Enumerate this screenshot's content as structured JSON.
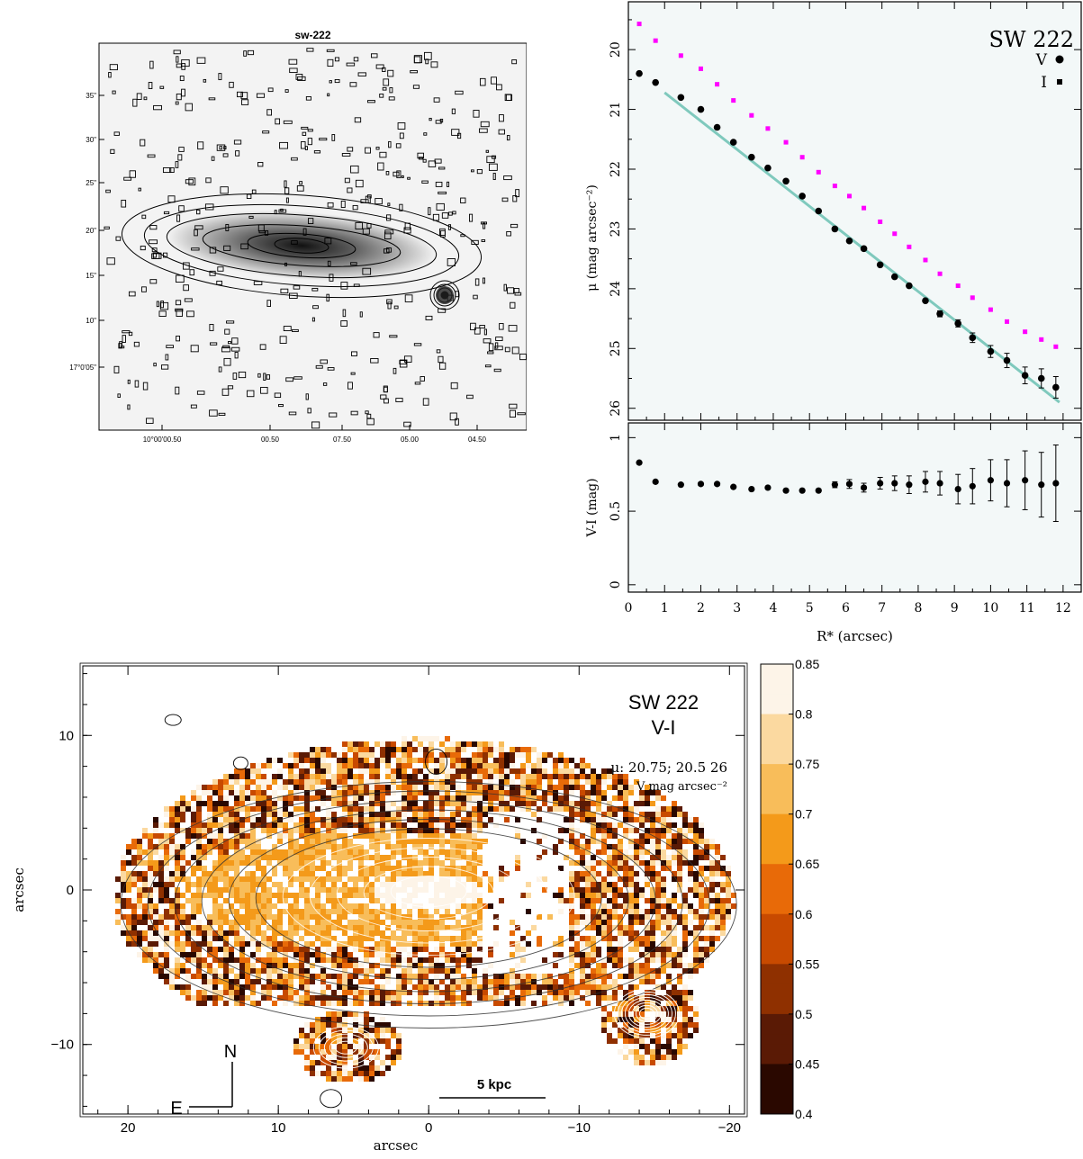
{
  "panel_a": {
    "title": "sw-222",
    "y_ticks": [
      "35\"",
      "30\"",
      "25\"",
      "20\"",
      "15\"",
      "10\"",
      "17°0'05\""
    ],
    "x_ticks": [
      "10°00'00.50",
      "00.50",
      "07.50",
      "05.00",
      "04.50"
    ]
  },
  "chart_data": [
    {
      "type": "scatter",
      "title": "SW 222",
      "xlabel": "R* (arcsec)",
      "ylabel": "μ (mag arcsec⁻²)",
      "xlim": [
        0,
        12.5
      ],
      "ylim": [
        26.2,
        19.2
      ],
      "y_inverted": true,
      "x_ticks": [
        "0",
        "1",
        "2",
        "3",
        "4",
        "5",
        "6",
        "7",
        "8",
        "9",
        "10",
        "11",
        "12"
      ],
      "y_ticks": [
        "20",
        "21",
        "22",
        "23",
        "24",
        "25",
        "26"
      ],
      "legend": [
        {
          "label": "V",
          "marker": "circle",
          "color": "#000000"
        },
        {
          "label": "I",
          "marker": "square",
          "color": "#ff00ff"
        }
      ],
      "series": [
        {
          "name": "V",
          "color": "#000000",
          "x": [
            0.3,
            0.75,
            1.45,
            2.0,
            2.45,
            2.9,
            3.4,
            3.85,
            4.35,
            4.8,
            5.25,
            5.7,
            6.1,
            6.5,
            6.95,
            7.35,
            7.75,
            8.2,
            8.6,
            9.1,
            9.5,
            10.0,
            10.45,
            10.95,
            11.4,
            11.8
          ],
          "y": [
            20.4,
            20.55,
            20.8,
            21.0,
            21.3,
            21.55,
            21.8,
            21.98,
            22.2,
            22.45,
            22.7,
            23.0,
            23.2,
            23.33,
            23.6,
            23.8,
            23.95,
            24.2,
            24.42,
            24.58,
            24.82,
            25.05,
            25.2,
            25.45,
            25.5,
            25.65
          ],
          "yerr": [
            0,
            0,
            0,
            0,
            0,
            0,
            0,
            0,
            0,
            0,
            0,
            0,
            0,
            0,
            0,
            0,
            0,
            0,
            0.05,
            0.06,
            0.08,
            0.1,
            0.12,
            0.14,
            0.16,
            0.18
          ]
        },
        {
          "name": "I",
          "color": "#ff00ff",
          "x": [
            0.3,
            0.75,
            1.45,
            2.0,
            2.45,
            2.9,
            3.4,
            3.85,
            4.35,
            4.8,
            5.25,
            5.7,
            6.1,
            6.5,
            6.95,
            7.35,
            7.75,
            8.2,
            8.6,
            9.1,
            9.5,
            10.0,
            10.45,
            10.95,
            11.4,
            11.8
          ],
          "y": [
            19.57,
            19.85,
            20.1,
            20.32,
            20.58,
            20.85,
            21.1,
            21.32,
            21.55,
            21.8,
            22.05,
            22.28,
            22.45,
            22.65,
            22.88,
            23.08,
            23.3,
            23.52,
            23.75,
            23.95,
            24.15,
            24.35,
            24.55,
            24.72,
            24.85,
            24.97
          ]
        },
        {
          "name": "",
          "kind": "line",
          "color": "#7fc9bd",
          "x": [
            1.0,
            11.9
          ],
          "y": [
            20.72,
            25.9
          ]
        }
      ]
    },
    {
      "type": "scatter",
      "xlabel": "R* (arcsec)",
      "ylabel": "V-I (mag)",
      "xlim": [
        0,
        12.5
      ],
      "ylim": [
        -0.05,
        1.1
      ],
      "y_ticks": [
        "0",
        "0.5",
        "1"
      ],
      "series": [
        {
          "name": "",
          "color": "#000000",
          "x": [
            0.3,
            0.75,
            1.45,
            2.0,
            2.45,
            2.9,
            3.4,
            3.85,
            4.35,
            4.8,
            5.25,
            5.7,
            6.1,
            6.5,
            6.95,
            7.35,
            7.75,
            8.2,
            8.6,
            9.1,
            9.5,
            10.0,
            10.45,
            10.95,
            11.4,
            11.8
          ],
          "y": [
            0.83,
            0.7,
            0.68,
            0.685,
            0.685,
            0.665,
            0.65,
            0.66,
            0.64,
            0.64,
            0.64,
            0.68,
            0.685,
            0.66,
            0.69,
            0.69,
            0.68,
            0.7,
            0.69,
            0.65,
            0.67,
            0.71,
            0.69,
            0.71,
            0.68,
            0.69
          ],
          "yerr": [
            0,
            0,
            0,
            0,
            0,
            0,
            0,
            0,
            0,
            0,
            0,
            0.02,
            0.03,
            0.03,
            0.04,
            0.05,
            0.06,
            0.07,
            0.08,
            0.1,
            0.12,
            0.14,
            0.16,
            0.2,
            0.22,
            0.26
          ]
        }
      ]
    },
    {
      "type": "heatmap",
      "title": "SW 222",
      "subtitle": "V-I",
      "annotation_line1": "μ: 20.75; 20.5  26",
      "annotation_line2": "V mag arcsec⁻²",
      "xlabel": "arcsec",
      "ylabel": "arcsec",
      "xlim": [
        23,
        -21
      ],
      "ylim": [
        -14.5,
        14.5
      ],
      "x_ticks": [
        "20",
        "10",
        "0",
        "−10",
        "−20"
      ],
      "y_ticks": [
        "10",
        "0",
        "−10"
      ],
      "colorbar_ticks": [
        "0.85",
        "0.8",
        "0.75",
        "0.7",
        "0.65",
        "0.6",
        "0.55",
        "0.5",
        "0.45",
        "0.4"
      ],
      "colorbar_range": [
        0.4,
        0.85
      ],
      "compass": {
        "north": "N",
        "east": "E"
      },
      "scale_bar": "5 kpc"
    }
  ]
}
